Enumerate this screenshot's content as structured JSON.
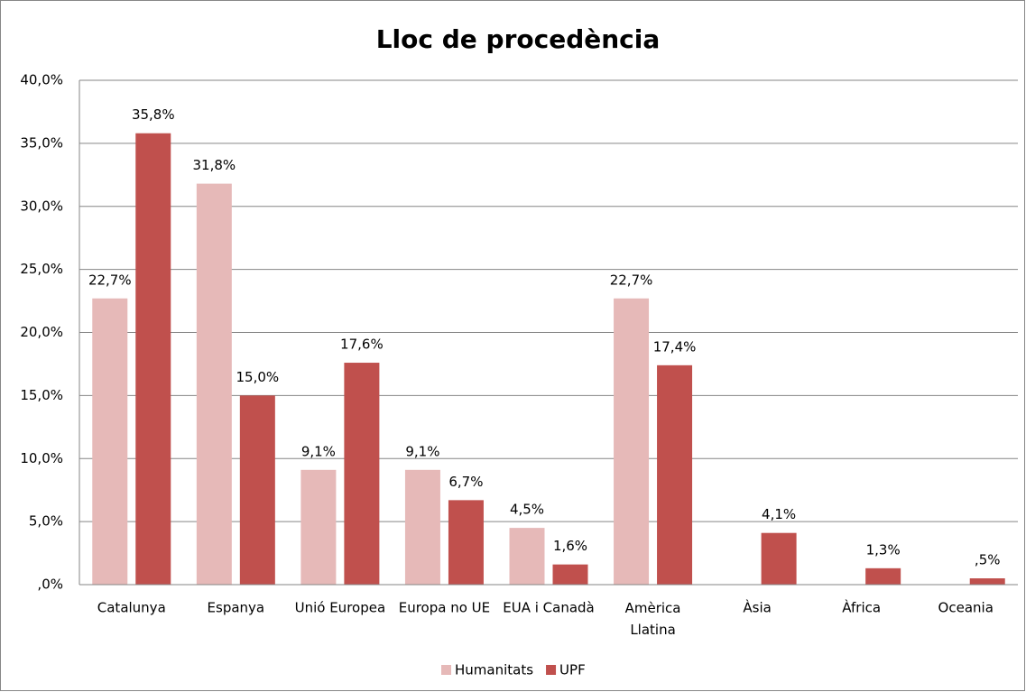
{
  "chart_data": {
    "type": "bar",
    "title": "Lloc de procedència",
    "categories": [
      "Catalunya",
      "Espanya",
      "Unió Europea",
      "Europa no UE",
      "EUA i Canadà",
      "Amèrica Llatina",
      "Àsia",
      "Àfrica",
      "Oceania"
    ],
    "series": [
      {
        "name": "Humanitats",
        "color": "#e6b9b8",
        "values": [
          22.7,
          31.8,
          9.1,
          9.1,
          4.5,
          22.7,
          null,
          null,
          null
        ],
        "value_labels": [
          "22,7%",
          "31,8%",
          "9,1%",
          "9,1%",
          "4,5%",
          "22,7%",
          null,
          null,
          null
        ]
      },
      {
        "name": "UPF",
        "color": "#c0504d",
        "values": [
          35.8,
          15.0,
          17.6,
          6.7,
          1.6,
          17.4,
          4.1,
          1.3,
          0.5
        ],
        "value_labels": [
          "35,8%",
          "15,0%",
          "17,6%",
          "6,7%",
          "1,6%",
          "17,4%",
          "4,1%",
          "1,3%",
          ",5%"
        ]
      }
    ],
    "ylim": [
      0,
      40
    ],
    "yticks": [
      {
        "value": 0,
        "label": ",0%"
      },
      {
        "value": 5,
        "label": "5,0%"
      },
      {
        "value": 10,
        "label": "10,0%"
      },
      {
        "value": 15,
        "label": "15,0%"
      },
      {
        "value": 20,
        "label": "20,0%"
      },
      {
        "value": 25,
        "label": "25,0%"
      },
      {
        "value": 30,
        "label": "30,0%"
      },
      {
        "value": 35,
        "label": "35,0%"
      },
      {
        "value": 40,
        "label": "40,0%"
      }
    ],
    "grid": true,
    "legend": "bottom"
  }
}
